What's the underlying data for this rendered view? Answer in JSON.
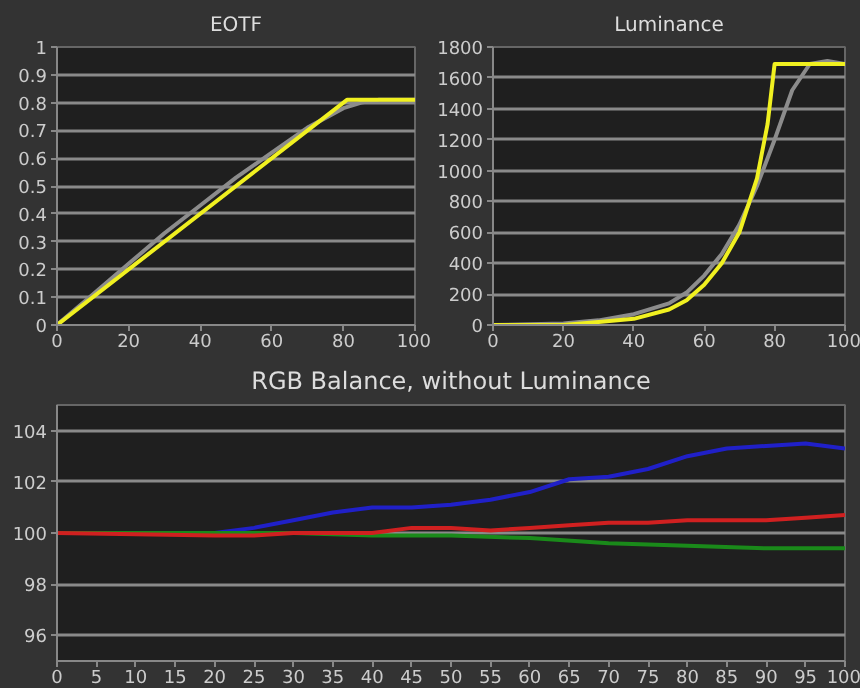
{
  "chart_data": [
    {
      "type": "line",
      "title": "EOTF",
      "xlim": [
        0,
        100
      ],
      "ylim": [
        0,
        1
      ],
      "xticks": [
        0,
        20,
        40,
        60,
        80,
        100
      ],
      "yticks": [
        0,
        0.1,
        0.2,
        0.3,
        0.4,
        0.5,
        0.6,
        0.7,
        0.8,
        0.9,
        1
      ],
      "grid": "y",
      "series": [
        {
          "color": "#8c8c8c",
          "x": [
            0,
            10,
            20,
            30,
            40,
            50,
            60,
            70,
            80,
            85,
            90,
            100
          ],
          "values": [
            0,
            0.11,
            0.22,
            0.33,
            0.43,
            0.53,
            0.62,
            0.71,
            0.78,
            0.8,
            0.81,
            0.81
          ]
        },
        {
          "color": "#f0f020",
          "x": [
            0,
            81,
            100
          ],
          "values": [
            0,
            0.81,
            0.81
          ]
        }
      ]
    },
    {
      "type": "line",
      "title": "Luminance",
      "xlim": [
        0,
        100
      ],
      "ylim": [
        0,
        1800
      ],
      "xticks": [
        0,
        20,
        40,
        60,
        80,
        100
      ],
      "yticks": [
        0,
        200,
        400,
        600,
        800,
        1000,
        1200,
        1400,
        1600,
        1800
      ],
      "grid": "y",
      "series": [
        {
          "color": "#8c8c8c",
          "x": [
            0,
            20,
            30,
            40,
            50,
            55,
            60,
            65,
            70,
            75,
            80,
            85,
            90,
            95,
            100
          ],
          "values": [
            0,
            10,
            30,
            70,
            140,
            210,
            320,
            460,
            650,
            900,
            1200,
            1520,
            1690,
            1710,
            1690
          ]
        },
        {
          "color": "#f0f020",
          "x": [
            0,
            20,
            30,
            40,
            50,
            55,
            60,
            65,
            70,
            75,
            78,
            80,
            100
          ],
          "values": [
            0,
            0,
            20,
            40,
            100,
            160,
            260,
            400,
            600,
            950,
            1300,
            1690,
            1690
          ]
        }
      ]
    },
    {
      "type": "line",
      "title": "RGB Balance, without Luminance",
      "xlim": [
        0,
        100
      ],
      "ylim": [
        95,
        105
      ],
      "xticks": [
        0,
        5,
        10,
        15,
        20,
        25,
        30,
        35,
        40,
        45,
        50,
        55,
        60,
        65,
        70,
        75,
        80,
        85,
        90,
        95,
        100
      ],
      "yticks": [
        96,
        98,
        100,
        102,
        104
      ],
      "grid": "y",
      "series": [
        {
          "color": "#2020c8",
          "x": [
            0,
            20,
            25,
            30,
            35,
            40,
            45,
            50,
            55,
            60,
            65,
            70,
            75,
            80,
            85,
            90,
            95,
            100
          ],
          "values": [
            100,
            100,
            100.2,
            100.5,
            100.8,
            101,
            101,
            101.1,
            101.3,
            101.6,
            102.1,
            102.2,
            102.5,
            103,
            103.3,
            103.4,
            103.5,
            103.3
          ]
        },
        {
          "color": "#1a8a1a",
          "x": [
            0,
            25,
            30,
            40,
            50,
            60,
            70,
            80,
            90,
            100
          ],
          "values": [
            100,
            100,
            100,
            99.9,
            99.9,
            99.8,
            99.6,
            99.5,
            99.4,
            99.4
          ]
        },
        {
          "color": "#d02020",
          "x": [
            0,
            20,
            25,
            30,
            35,
            40,
            45,
            50,
            55,
            60,
            65,
            70,
            75,
            80,
            85,
            90,
            95,
            100
          ],
          "values": [
            100,
            99.9,
            99.9,
            100,
            100,
            100,
            100.2,
            100.2,
            100.1,
            100.2,
            100.3,
            100.4,
            100.4,
            100.5,
            100.5,
            100.5,
            100.6,
            100.7
          ]
        }
      ]
    }
  ]
}
